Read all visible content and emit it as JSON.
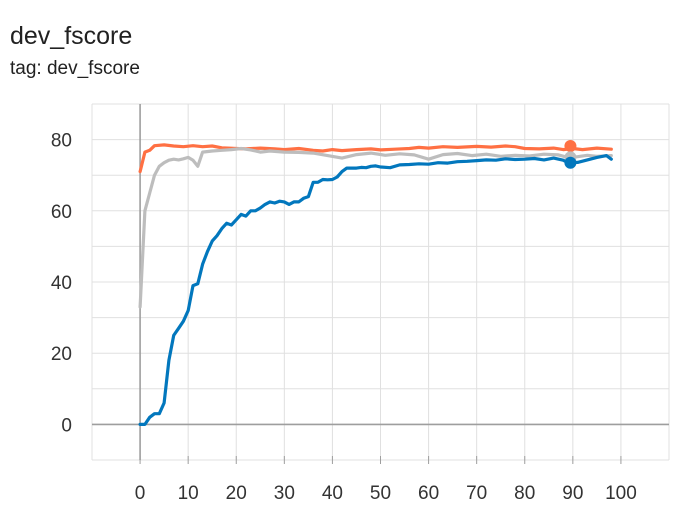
{
  "card": {
    "title": "dev_fscore",
    "tag": "tag: dev_fscore"
  },
  "chart_data": {
    "type": "line",
    "title": "dev_fscore",
    "subtitle": "tag: dev_fscore",
    "xlabel": "",
    "ylabel": "",
    "xlim": [
      -10,
      110
    ],
    "ylim": [
      -10,
      90
    ],
    "x_ticks": [
      0,
      10,
      20,
      30,
      40,
      50,
      60,
      70,
      80,
      90,
      100
    ],
    "y_ticks": [
      0,
      20,
      40,
      60,
      80
    ],
    "grid": true,
    "series": [
      {
        "color": "#ff7043",
        "x": [
          0,
          1,
          2,
          3,
          5,
          7,
          9,
          11,
          13,
          15,
          17,
          20,
          22,
          25,
          28,
          30,
          33,
          36,
          38,
          40,
          42,
          45,
          48,
          50,
          53,
          56,
          58,
          60,
          63,
          66,
          70,
          73,
          76,
          78,
          80,
          83,
          86,
          88,
          90,
          92,
          95,
          98
        ],
        "y": [
          71,
          76.5,
          77,
          78.3,
          78.5,
          78.2,
          78,
          78.3,
          78,
          78.2,
          77.7,
          77.5,
          77.4,
          77.6,
          77.4,
          77.2,
          77.5,
          77,
          76.8,
          77.2,
          76.9,
          77.2,
          77.4,
          77.1,
          77.3,
          77.5,
          77.8,
          77.6,
          78,
          77.8,
          78.1,
          77.9,
          78.2,
          78,
          77.5,
          77.4,
          77.6,
          77.2,
          77.5,
          77.2,
          77.6,
          77.3
        ],
        "marker": {
          "x": 89.5,
          "y": 78.2
        }
      },
      {
        "color": "#bdbdbd",
        "x": [
          0,
          1,
          2,
          3,
          4,
          5,
          6,
          7,
          8,
          9,
          10,
          11,
          12,
          13,
          15,
          17,
          19,
          21,
          23,
          25,
          27,
          30,
          33,
          36,
          39,
          42,
          45,
          48,
          51,
          54,
          57,
          60,
          63,
          66,
          69,
          72,
          75,
          78,
          81,
          84,
          87,
          89,
          91,
          93,
          95,
          98
        ],
        "y": [
          33,
          60,
          65,
          70,
          72.5,
          73.5,
          74.2,
          74.5,
          74.3,
          74.6,
          75,
          74.2,
          72.5,
          76.5,
          76.8,
          77,
          77.2,
          77.5,
          77.1,
          76.5,
          76.8,
          76.5,
          76.4,
          76.2,
          75.5,
          74.8,
          75.8,
          76.2,
          75.6,
          76,
          75.7,
          74.5,
          75.8,
          76.1,
          75.5,
          75.9,
          75.3,
          75.6,
          75.4,
          75.9,
          75.7,
          75,
          75.2,
          75.6,
          75.3,
          75.5
        ],
        "marker": {
          "x": 89.5,
          "y": 75
        }
      },
      {
        "color": "#0277bd",
        "x": [
          0,
          1,
          2,
          3,
          4,
          5,
          6,
          7,
          8,
          9,
          10,
          11,
          12,
          13,
          14,
          15,
          16,
          17,
          18,
          19,
          20,
          21,
          22,
          23,
          24,
          25,
          26,
          27,
          28,
          29,
          30,
          31,
          32,
          33,
          34,
          35,
          36,
          37,
          38,
          39,
          40,
          41,
          42,
          43,
          44,
          45,
          46,
          47,
          48,
          49,
          50,
          52,
          54,
          56,
          58,
          60,
          62,
          64,
          66,
          68,
          70,
          72,
          74,
          76,
          78,
          80,
          82,
          84,
          86,
          88,
          89,
          91,
          93,
          95,
          97,
          98
        ],
        "y": [
          0,
          0,
          2,
          3,
          3,
          6,
          18,
          25,
          27,
          29,
          32,
          39,
          39.5,
          45,
          48.5,
          51.5,
          53,
          55,
          56.5,
          56,
          57.5,
          59,
          58.5,
          60,
          60,
          60.8,
          61.8,
          62.5,
          62.2,
          62.7,
          62.5,
          61.8,
          62.5,
          62.5,
          63.5,
          64,
          68,
          68,
          68.8,
          68.7,
          68.8,
          69.5,
          71,
          72,
          72,
          72,
          72.2,
          72.1,
          72.5,
          72.6,
          72.3,
          72.1,
          72.9,
          73,
          73.2,
          73.1,
          73.5,
          73.4,
          73.8,
          73.9,
          74.1,
          74.3,
          74.2,
          74.6,
          74.4,
          74.5,
          74.7,
          74.3,
          74.8,
          74.2,
          73.5,
          73.6,
          74.3,
          75,
          75.5,
          74.5
        ],
        "marker": {
          "x": 89.5,
          "y": 73.5
        }
      }
    ]
  }
}
